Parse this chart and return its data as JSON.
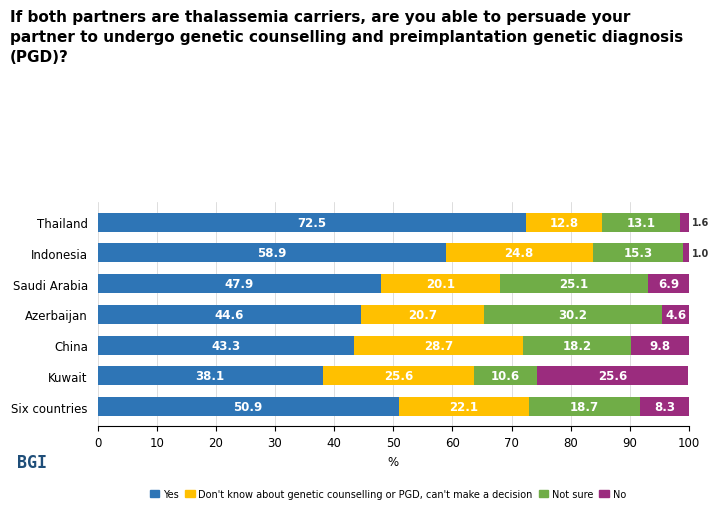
{
  "title_line1": "If both partners are thalassemia carriers, are you able to persuade your",
  "title_line2": "partner to undergo genetic counselling and preimplantation genetic diagnosis",
  "title_line3": "(PGD)?",
  "categories": [
    "Thailand",
    "Indonesia",
    "Saudi Arabia",
    "Azerbaijan",
    "China",
    "Kuwait",
    "Six countries"
  ],
  "yes": [
    72.5,
    58.9,
    47.9,
    44.6,
    43.3,
    38.1,
    50.9
  ],
  "dont_know": [
    12.8,
    24.8,
    20.1,
    20.7,
    28.7,
    25.6,
    22.1
  ],
  "not_sure": [
    13.1,
    15.3,
    25.1,
    30.2,
    18.2,
    10.6,
    18.7
  ],
  "no": [
    1.6,
    1.0,
    6.9,
    4.6,
    9.8,
    25.6,
    8.3
  ],
  "colors": {
    "yes": "#2e75b6",
    "dont_know": "#ffc000",
    "not_sure": "#70ad47",
    "no": "#9b2c7e"
  },
  "legend_labels": [
    "Yes",
    "Don't know about genetic counselling or PGD, can't make a decision",
    "Not sure",
    "No"
  ],
  "xlabel": "%",
  "xlim": [
    0,
    100
  ],
  "xticks": [
    0,
    10,
    20,
    30,
    40,
    50,
    60,
    70,
    80,
    90,
    100
  ],
  "background_color": "#ffffff",
  "bgi_color": "#1f4e79",
  "title_fontsize": 11.0,
  "bar_label_fontsize": 8.5,
  "tick_fontsize": 8.5,
  "bar_height": 0.62
}
